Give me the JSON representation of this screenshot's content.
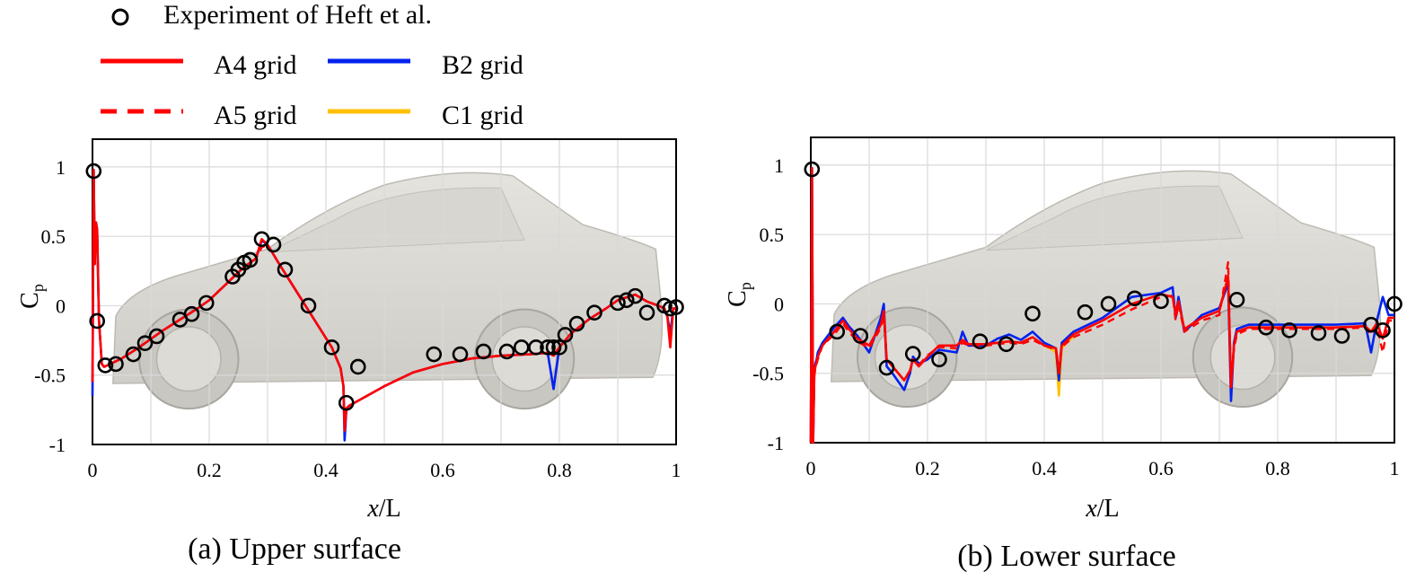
{
  "legend": {
    "experiment": "Experiment of Heft et al.",
    "a4": "A4 grid",
    "a5": "A5 grid",
    "b2": "B2 grid",
    "c1": "C1 grid",
    "colors": {
      "a4": "#ff0000",
      "a5": "#ff0000",
      "b2": "#0022ee",
      "c1": "#ffc000",
      "exp": "#000000"
    }
  },
  "chart_data": [
    {
      "type": "line",
      "title": "(a) Upper surface",
      "xlabel_italic": "x",
      "xlabel_rest": "/L",
      "ylabel_main": "C",
      "ylabel_sub": "p",
      "xlim": [
        0,
        1
      ],
      "ylim": [
        -1,
        1.2
      ],
      "xticks": [
        0,
        0.2,
        0.4,
        0.6,
        0.8,
        1
      ],
      "xtick_labels": [
        "0",
        "0.2",
        "0.4",
        "0.6",
        "0.8",
        "1"
      ],
      "yticks": [
        -1,
        -0.5,
        0,
        0.5,
        1
      ],
      "ytick_labels": [
        "-1",
        "-0.5",
        "0",
        "0.5",
        "1"
      ],
      "background": "car body silhouette (side view)",
      "experiment": {
        "x": [
          0.002,
          0.008,
          0.022,
          0.04,
          0.07,
          0.09,
          0.11,
          0.15,
          0.17,
          0.195,
          0.24,
          0.25,
          0.26,
          0.27,
          0.29,
          0.31,
          0.33,
          0.37,
          0.41,
          0.455,
          0.435,
          0.585,
          0.63,
          0.67,
          0.71,
          0.735,
          0.76,
          0.78,
          0.79,
          0.8,
          0.81,
          0.83,
          0.86,
          0.9,
          0.915,
          0.93,
          0.95,
          0.98,
          0.99,
          1.0
        ],
        "y": [
          0.97,
          -0.11,
          -0.43,
          -0.42,
          -0.35,
          -0.27,
          -0.22,
          -0.1,
          -0.06,
          0.02,
          0.21,
          0.26,
          0.31,
          0.33,
          0.48,
          0.44,
          0.26,
          0.0,
          -0.3,
          -0.44,
          -0.7,
          -0.35,
          -0.35,
          -0.33,
          -0.33,
          -0.3,
          -0.3,
          -0.3,
          -0.3,
          -0.3,
          -0.21,
          -0.13,
          -0.05,
          0.02,
          0.04,
          0.07,
          -0.05,
          0.0,
          -0.02,
          -0.01
        ]
      },
      "series": [
        {
          "name": "A4 grid",
          "key": "a4",
          "style": "solid",
          "x": [
            0,
            0.002,
            0.004,
            0.006,
            0.008,
            0.011,
            0.016,
            0.02,
            0.03,
            0.05,
            0.08,
            0.1,
            0.12,
            0.15,
            0.18,
            0.2,
            0.22,
            0.24,
            0.26,
            0.28,
            0.29,
            0.3,
            0.32,
            0.35,
            0.38,
            0.41,
            0.425,
            0.43,
            0.432,
            0.435,
            0.44,
            0.5,
            0.55,
            0.6,
            0.65,
            0.7,
            0.75,
            0.78,
            0.79,
            0.8,
            0.82,
            0.85,
            0.88,
            0.9,
            0.93,
            0.95,
            0.97,
            0.98,
            0.985,
            0.99,
            0.995,
            1.0
          ],
          "y": [
            -0.55,
            0.98,
            0.3,
            0.6,
            0.55,
            -0.1,
            -0.42,
            -0.44,
            -0.42,
            -0.38,
            -0.3,
            -0.24,
            -0.18,
            -0.1,
            -0.02,
            0.04,
            0.12,
            0.2,
            0.28,
            0.34,
            0.48,
            0.44,
            0.3,
            0.1,
            -0.1,
            -0.3,
            -0.45,
            -0.58,
            -0.9,
            -0.74,
            -0.72,
            -0.58,
            -0.48,
            -0.42,
            -0.38,
            -0.36,
            -0.35,
            -0.34,
            -0.36,
            -0.3,
            -0.2,
            -0.1,
            -0.02,
            0.04,
            0.08,
            0.03,
            0.0,
            -0.02,
            -0.08,
            -0.3,
            -0.02,
            -0.02
          ]
        },
        {
          "name": "A5 grid",
          "key": "a5",
          "style": "dashed",
          "x": [
            0,
            0.002,
            0.004,
            0.006,
            0.008,
            0.011,
            0.016,
            0.02,
            0.03,
            0.05,
            0.08,
            0.1,
            0.12,
            0.15,
            0.18,
            0.2,
            0.22,
            0.24,
            0.26,
            0.28,
            0.29,
            0.3,
            0.32,
            0.35,
            0.38,
            0.41,
            0.425,
            0.43,
            0.432,
            0.435,
            0.44,
            0.5,
            0.55,
            0.6,
            0.65,
            0.7,
            0.75,
            0.78,
            0.79,
            0.8,
            0.82,
            0.85,
            0.88,
            0.9,
            0.93,
            0.95,
            0.97,
            0.98,
            0.985,
            0.99,
            0.995,
            1.0
          ],
          "y": [
            -0.55,
            0.96,
            0.3,
            0.58,
            0.55,
            -0.1,
            -0.42,
            -0.44,
            -0.42,
            -0.38,
            -0.3,
            -0.24,
            -0.18,
            -0.1,
            -0.02,
            0.04,
            0.12,
            0.2,
            0.28,
            0.34,
            0.42,
            0.44,
            0.3,
            0.1,
            -0.1,
            -0.3,
            -0.45,
            -0.58,
            -0.88,
            -0.74,
            -0.72,
            -0.58,
            -0.48,
            -0.42,
            -0.38,
            -0.36,
            -0.35,
            -0.34,
            -0.36,
            -0.3,
            -0.2,
            -0.1,
            -0.02,
            0.04,
            0.08,
            0.03,
            0.0,
            -0.02,
            -0.08,
            -0.25,
            -0.02,
            -0.02
          ]
        },
        {
          "name": "B2 grid",
          "key": "b2",
          "style": "solid",
          "x": [
            0,
            0.002,
            0.004,
            0.006,
            0.008,
            0.011,
            0.016,
            0.02,
            0.03,
            0.05,
            0.08,
            0.1,
            0.12,
            0.15,
            0.18,
            0.2,
            0.22,
            0.24,
            0.26,
            0.28,
            0.29,
            0.3,
            0.32,
            0.35,
            0.38,
            0.41,
            0.425,
            0.43,
            0.432,
            0.435,
            0.44,
            0.5,
            0.55,
            0.6,
            0.65,
            0.7,
            0.75,
            0.78,
            0.79,
            0.8,
            0.82,
            0.85,
            0.88,
            0.9,
            0.93,
            0.95,
            0.97,
            0.98,
            0.985,
            0.99,
            0.995,
            1.0
          ],
          "y": [
            -0.65,
            0.98,
            0.3,
            0.6,
            0.55,
            -0.1,
            -0.42,
            -0.44,
            -0.42,
            -0.38,
            -0.3,
            -0.24,
            -0.18,
            -0.1,
            -0.02,
            0.04,
            0.12,
            0.2,
            0.28,
            0.34,
            0.47,
            0.44,
            0.3,
            0.1,
            -0.1,
            -0.3,
            -0.45,
            -0.58,
            -0.97,
            -0.74,
            -0.72,
            -0.58,
            -0.48,
            -0.42,
            -0.38,
            -0.36,
            -0.35,
            -0.34,
            -0.6,
            -0.3,
            -0.2,
            -0.1,
            -0.02,
            0.04,
            0.08,
            0.03,
            0.0,
            -0.02,
            -0.08,
            -0.2,
            -0.02,
            -0.02
          ]
        },
        {
          "name": "C1 grid",
          "key": "c1",
          "style": "solid",
          "x": [],
          "y": []
        }
      ]
    },
    {
      "type": "line",
      "title": "(b) Lower surface",
      "xlabel_italic": "x",
      "xlabel_rest": "/L",
      "ylabel_main": "C",
      "ylabel_sub": "p",
      "xlim": [
        0,
        1
      ],
      "ylim": [
        -1,
        1.2
      ],
      "xticks": [
        0,
        0.2,
        0.4,
        0.6,
        0.8,
        1
      ],
      "xtick_labels": [
        "0",
        "0.2",
        "0.4",
        "0.6",
        "0.8",
        "1"
      ],
      "yticks": [
        -1,
        -0.5,
        0,
        0.5,
        1
      ],
      "ytick_labels": [
        "-1",
        "-0.5",
        "0",
        "0.5",
        "1"
      ],
      "background": "car body silhouette (side view)",
      "experiment": {
        "x": [
          0.002,
          0.045,
          0.085,
          0.13,
          0.175,
          0.22,
          0.29,
          0.335,
          0.38,
          0.47,
          0.51,
          0.555,
          0.6,
          0.73,
          0.78,
          0.82,
          0.87,
          0.91,
          0.96,
          0.98,
          1.0
        ],
        "y": [
          0.97,
          -0.2,
          -0.23,
          -0.46,
          -0.36,
          -0.4,
          -0.27,
          -0.29,
          -0.07,
          -0.06,
          0.0,
          0.04,
          0.02,
          0.03,
          -0.17,
          -0.19,
          -0.21,
          -0.23,
          -0.15,
          -0.19,
          0.0
        ]
      },
      "series": [
        {
          "name": "A4 grid",
          "key": "a4",
          "style": "solid",
          "x": [
            0,
            0.002,
            0.004,
            0.006,
            0.008,
            0.01,
            0.012,
            0.02,
            0.04,
            0.055,
            0.065,
            0.08,
            0.1,
            0.12,
            0.125,
            0.13,
            0.14,
            0.16,
            0.17,
            0.175,
            0.185,
            0.2,
            0.22,
            0.25,
            0.26,
            0.27,
            0.3,
            0.32,
            0.34,
            0.36,
            0.38,
            0.4,
            0.42,
            0.425,
            0.43,
            0.45,
            0.5,
            0.55,
            0.6,
            0.62,
            0.625,
            0.63,
            0.64,
            0.67,
            0.7,
            0.715,
            0.72,
            0.725,
            0.73,
            0.75,
            0.8,
            0.85,
            0.9,
            0.95,
            0.96,
            0.97,
            0.98,
            0.99,
            1.0
          ],
          "y": [
            -1.0,
            0.98,
            -1.0,
            -0.5,
            -0.45,
            -0.42,
            -0.38,
            -0.3,
            -0.2,
            -0.12,
            -0.18,
            -0.25,
            -0.3,
            -0.15,
            -0.05,
            -0.4,
            -0.45,
            -0.55,
            -0.48,
            -0.4,
            -0.45,
            -0.38,
            -0.3,
            -0.3,
            -0.26,
            -0.29,
            -0.29,
            -0.28,
            -0.27,
            -0.28,
            -0.24,
            -0.3,
            -0.32,
            -0.5,
            -0.3,
            -0.22,
            -0.12,
            0.0,
            0.07,
            0.05,
            -0.07,
            0.02,
            -0.18,
            -0.1,
            -0.05,
            0.2,
            -0.6,
            -0.3,
            -0.2,
            -0.17,
            -0.17,
            -0.17,
            -0.17,
            -0.16,
            -0.2,
            -0.14,
            -0.25,
            -0.1,
            -0.1
          ]
        },
        {
          "name": "A5 grid",
          "key": "a5",
          "style": "dashed",
          "x": [
            0,
            0.002,
            0.004,
            0.006,
            0.008,
            0.01,
            0.012,
            0.02,
            0.04,
            0.055,
            0.065,
            0.08,
            0.1,
            0.12,
            0.125,
            0.13,
            0.14,
            0.16,
            0.17,
            0.175,
            0.185,
            0.2,
            0.22,
            0.25,
            0.26,
            0.27,
            0.3,
            0.32,
            0.34,
            0.36,
            0.38,
            0.4,
            0.42,
            0.425,
            0.43,
            0.45,
            0.5,
            0.55,
            0.6,
            0.62,
            0.625,
            0.63,
            0.64,
            0.67,
            0.7,
            0.715,
            0.72,
            0.725,
            0.73,
            0.75,
            0.8,
            0.85,
            0.9,
            0.95,
            0.96,
            0.97,
            0.98,
            0.99,
            1.0
          ],
          "y": [
            -1.0,
            0.98,
            -1.0,
            -0.52,
            -0.46,
            -0.43,
            -0.4,
            -0.3,
            -0.22,
            -0.14,
            -0.2,
            -0.27,
            -0.32,
            -0.17,
            -0.08,
            -0.4,
            -0.45,
            -0.55,
            -0.48,
            -0.4,
            -0.44,
            -0.37,
            -0.31,
            -0.32,
            -0.28,
            -0.3,
            -0.3,
            -0.29,
            -0.28,
            -0.29,
            -0.26,
            -0.3,
            -0.33,
            -0.45,
            -0.31,
            -0.24,
            -0.15,
            -0.04,
            0.05,
            0.06,
            -0.12,
            0.0,
            -0.2,
            -0.12,
            -0.08,
            0.3,
            -0.6,
            -0.32,
            -0.22,
            -0.18,
            -0.18,
            -0.18,
            -0.18,
            -0.17,
            -0.22,
            -0.16,
            -0.35,
            -0.12,
            -0.12
          ]
        },
        {
          "name": "B2 grid",
          "key": "b2",
          "style": "solid",
          "x": [
            0,
            0.002,
            0.004,
            0.006,
            0.008,
            0.01,
            0.012,
            0.02,
            0.04,
            0.055,
            0.065,
            0.08,
            0.1,
            0.12,
            0.125,
            0.13,
            0.14,
            0.16,
            0.17,
            0.175,
            0.185,
            0.2,
            0.22,
            0.25,
            0.26,
            0.27,
            0.3,
            0.32,
            0.34,
            0.36,
            0.38,
            0.4,
            0.42,
            0.425,
            0.43,
            0.45,
            0.5,
            0.55,
            0.6,
            0.62,
            0.625,
            0.63,
            0.64,
            0.67,
            0.7,
            0.715,
            0.72,
            0.725,
            0.73,
            0.75,
            0.8,
            0.85,
            0.9,
            0.95,
            0.96,
            0.97,
            0.98,
            0.99,
            1.0
          ],
          "y": [
            -1.0,
            0.98,
            -1.0,
            -0.48,
            -0.43,
            -0.4,
            -0.35,
            -0.28,
            -0.17,
            -0.1,
            -0.16,
            -0.23,
            -0.35,
            -0.1,
            0.0,
            -0.45,
            -0.5,
            -0.62,
            -0.5,
            -0.38,
            -0.43,
            -0.4,
            -0.33,
            -0.35,
            -0.2,
            -0.3,
            -0.3,
            -0.25,
            -0.22,
            -0.26,
            -0.2,
            -0.28,
            -0.32,
            -0.55,
            -0.28,
            -0.2,
            -0.1,
            0.05,
            0.08,
            0.12,
            -0.1,
            0.05,
            -0.2,
            -0.08,
            -0.03,
            0.15,
            -0.7,
            -0.28,
            -0.18,
            -0.15,
            -0.15,
            -0.15,
            -0.15,
            -0.14,
            -0.35,
            -0.12,
            0.05,
            -0.08,
            -0.08
          ]
        },
        {
          "name": "C1 grid",
          "key": "c1",
          "style": "solid",
          "x": [
            0.4,
            0.41,
            0.42,
            0.425,
            0.43,
            0.44,
            0.45
          ],
          "y": [
            -0.3,
            -0.32,
            -0.35,
            -0.66,
            -0.32,
            -0.27,
            -0.24
          ]
        }
      ]
    }
  ]
}
